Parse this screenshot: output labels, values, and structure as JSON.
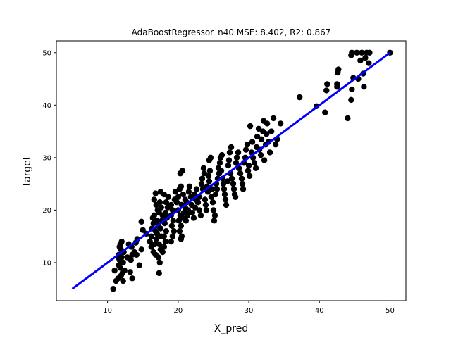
{
  "chart_data": {
    "type": "scatter",
    "title": "AdaBoostRegressor_n40 MSE: 8.402, R2: 0.867",
    "xlabel": "X_pred",
    "ylabel": "target",
    "xlim": [
      2.75,
      52.25
    ],
    "ylim": [
      2.75,
      52.25
    ],
    "xticks": [
      10,
      20,
      30,
      40,
      50
    ],
    "yticks": [
      10,
      20,
      30,
      40,
      50
    ],
    "grid": false,
    "series": [
      {
        "kind": "scatter",
        "color": "#000000",
        "points": [
          [
            10.8,
            5.0
          ],
          [
            11.2,
            6.5
          ],
          [
            11.0,
            8.5
          ],
          [
            11.5,
            7.0
          ],
          [
            11.8,
            9.0
          ],
          [
            11.7,
            10.5
          ],
          [
            11.6,
            11.5
          ],
          [
            11.9,
            12.5
          ],
          [
            11.8,
            13.5
          ],
          [
            12.0,
            14.0
          ],
          [
            11.9,
            7.5
          ],
          [
            12.1,
            8.0
          ],
          [
            12.2,
            10.0
          ],
          [
            12.0,
            11.0
          ],
          [
            12.3,
            12.0
          ],
          [
            11.7,
            13.0
          ],
          [
            11.6,
            9.5
          ],
          [
            12.4,
            8.5
          ],
          [
            12.2,
            6.5
          ],
          [
            11.5,
            11.0
          ],
          [
            12.8,
            11.0
          ],
          [
            13.2,
            8.2
          ],
          [
            13.3,
            10.5
          ],
          [
            13.5,
            11.5
          ],
          [
            13.4,
            13.0
          ],
          [
            13.8,
            12.0
          ],
          [
            13.5,
            7.0
          ],
          [
            14.0,
            13.8
          ],
          [
            14.1,
            11.5
          ],
          [
            14.5,
            9.5
          ],
          [
            14.2,
            14.5
          ],
          [
            13.0,
            13.5
          ],
          [
            14.8,
            12.5
          ],
          [
            15.0,
            16.2
          ],
          [
            14.8,
            17.8
          ],
          [
            15.5,
            15.5
          ],
          [
            16.0,
            14.0
          ],
          [
            16.2,
            15.0
          ],
          [
            16.3,
            16.5
          ],
          [
            16.5,
            17.5
          ],
          [
            16.4,
            18.5
          ],
          [
            16.6,
            19.0
          ],
          [
            16.2,
            13.0
          ],
          [
            16.5,
            12.0
          ],
          [
            16.8,
            11.5
          ],
          [
            16.7,
            13.5
          ],
          [
            16.9,
            14.5
          ],
          [
            17.0,
            15.5
          ],
          [
            16.8,
            16.0
          ],
          [
            17.2,
            17.0
          ],
          [
            17.0,
            18.0
          ],
          [
            17.3,
            19.5
          ],
          [
            17.1,
            20.0
          ],
          [
            16.9,
            21.0
          ],
          [
            16.6,
            22.0
          ],
          [
            16.8,
            23.2
          ],
          [
            17.5,
            23.5
          ],
          [
            17.4,
            21.5
          ],
          [
            17.6,
            20.5
          ],
          [
            17.8,
            19.0
          ],
          [
            17.7,
            18.0
          ],
          [
            17.5,
            16.5
          ],
          [
            17.6,
            15.0
          ],
          [
            17.3,
            13.5
          ],
          [
            17.5,
            12.5
          ],
          [
            17.2,
            11.0
          ],
          [
            17.4,
            10.0
          ],
          [
            17.3,
            8.0
          ],
          [
            17.8,
            12.0
          ],
          [
            18.0,
            13.0
          ],
          [
            18.2,
            14.0
          ],
          [
            18.0,
            15.0
          ],
          [
            18.3,
            16.0
          ],
          [
            18.1,
            17.5
          ],
          [
            18.4,
            18.5
          ],
          [
            18.2,
            19.5
          ],
          [
            18.5,
            20.5
          ],
          [
            18.3,
            21.5
          ],
          [
            18.6,
            22.5
          ],
          [
            18.0,
            23.0
          ],
          [
            19.0,
            21.0
          ],
          [
            19.2,
            20.0
          ],
          [
            19.0,
            19.0
          ],
          [
            19.3,
            18.0
          ],
          [
            19.1,
            17.0
          ],
          [
            19.4,
            16.0
          ],
          [
            19.2,
            15.0
          ],
          [
            19.0,
            14.0
          ],
          [
            19.5,
            22.0
          ],
          [
            19.6,
            23.5
          ],
          [
            19.8,
            21.5
          ],
          [
            20.0,
            22.5
          ],
          [
            20.2,
            24.0
          ],
          [
            20.0,
            20.0
          ],
          [
            20.3,
            19.0
          ],
          [
            20.1,
            18.0
          ],
          [
            20.4,
            17.0
          ],
          [
            20.2,
            16.0
          ],
          [
            20.5,
            15.0
          ],
          [
            20.4,
            14.5
          ],
          [
            20.6,
            18.5
          ],
          [
            20.8,
            19.5
          ],
          [
            20.5,
            21.0
          ],
          [
            20.7,
            23.0
          ],
          [
            20.4,
            24.5
          ],
          [
            20.3,
            27.0
          ],
          [
            20.6,
            27.5
          ],
          [
            21.0,
            20.5
          ],
          [
            21.2,
            21.5
          ],
          [
            21.0,
            22.0
          ],
          [
            21.3,
            19.0
          ],
          [
            21.1,
            18.0
          ],
          [
            21.4,
            20.0
          ],
          [
            21.5,
            23.5
          ],
          [
            21.6,
            24.5
          ],
          [
            21.8,
            22.5
          ],
          [
            21.9,
            21.0
          ],
          [
            22.0,
            19.5
          ],
          [
            22.2,
            18.5
          ],
          [
            22.4,
            20.5
          ],
          [
            22.5,
            22.0
          ],
          [
            22.3,
            23.0
          ],
          [
            22.6,
            24.0
          ],
          [
            22.8,
            21.5
          ],
          [
            23.0,
            20.0
          ],
          [
            23.2,
            19.0
          ],
          [
            23.0,
            22.5
          ],
          [
            23.3,
            25.0
          ],
          [
            23.5,
            24.0
          ],
          [
            23.4,
            26.0
          ],
          [
            23.7,
            27.0
          ],
          [
            23.6,
            28.0
          ],
          [
            23.8,
            22.0
          ],
          [
            23.9,
            21.0
          ],
          [
            24.0,
            20.0
          ],
          [
            24.2,
            23.5
          ],
          [
            24.1,
            24.5
          ],
          [
            24.4,
            25.5
          ],
          [
            24.3,
            26.5
          ],
          [
            24.5,
            27.5
          ],
          [
            24.4,
            29.5
          ],
          [
            24.6,
            30.0
          ],
          [
            24.8,
            24.0
          ],
          [
            24.7,
            22.5
          ],
          [
            24.9,
            21.5
          ],
          [
            25.0,
            20.0
          ],
          [
            25.2,
            19.0
          ],
          [
            25.1,
            18.0
          ],
          [
            25.3,
            23.0
          ],
          [
            25.5,
            24.0
          ],
          [
            25.4,
            25.0
          ],
          [
            25.6,
            26.0
          ],
          [
            25.8,
            27.0
          ],
          [
            25.7,
            28.0
          ],
          [
            25.9,
            29.0
          ],
          [
            26.0,
            30.0
          ],
          [
            26.2,
            30.5
          ],
          [
            26.1,
            27.5
          ],
          [
            26.3,
            26.0
          ],
          [
            26.4,
            25.0
          ],
          [
            26.5,
            24.0
          ],
          [
            26.6,
            23.0
          ],
          [
            26.7,
            22.0
          ],
          [
            26.8,
            21.0
          ],
          [
            27.0,
            25.5
          ],
          [
            27.1,
            28.5
          ],
          [
            27.2,
            29.5
          ],
          [
            27.3,
            31.0
          ],
          [
            27.5,
            32.0
          ],
          [
            27.4,
            27.0
          ],
          [
            27.6,
            26.0
          ],
          [
            27.8,
            25.0
          ],
          [
            27.9,
            24.0
          ],
          [
            28.0,
            23.0
          ],
          [
            28.1,
            22.5
          ],
          [
            28.2,
            29.0
          ],
          [
            28.3,
            30.0
          ],
          [
            28.5,
            31.0
          ],
          [
            28.6,
            28.0
          ],
          [
            28.8,
            27.0
          ],
          [
            29.0,
            26.0
          ],
          [
            29.1,
            25.0
          ],
          [
            29.2,
            24.0
          ],
          [
            29.3,
            29.0
          ],
          [
            29.5,
            30.0
          ],
          [
            29.6,
            31.5
          ],
          [
            29.8,
            32.5
          ],
          [
            29.9,
            27.5
          ],
          [
            30.0,
            28.5
          ],
          [
            30.1,
            26.5
          ],
          [
            30.2,
            36.0
          ],
          [
            30.4,
            31.0
          ],
          [
            30.5,
            33.0
          ],
          [
            30.6,
            30.0
          ],
          [
            30.8,
            29.0
          ],
          [
            31.0,
            28.0
          ],
          [
            31.1,
            32.0
          ],
          [
            31.2,
            34.0
          ],
          [
            31.4,
            35.5
          ],
          [
            31.5,
            31.5
          ],
          [
            31.7,
            30.5
          ],
          [
            31.8,
            33.5
          ],
          [
            32.0,
            35.0
          ],
          [
            32.1,
            37.0
          ],
          [
            32.2,
            29.5
          ],
          [
            32.4,
            32.5
          ],
          [
            32.5,
            34.5
          ],
          [
            32.6,
            36.5
          ],
          [
            32.8,
            33.0
          ],
          [
            33.0,
            31.0
          ],
          [
            33.2,
            35.0
          ],
          [
            33.5,
            37.5
          ],
          [
            33.8,
            32.5
          ],
          [
            34.0,
            33.5
          ],
          [
            34.5,
            36.5
          ],
          [
            37.2,
            41.5
          ],
          [
            39.6,
            39.8
          ],
          [
            40.8,
            38.6
          ],
          [
            41.0,
            42.8
          ],
          [
            41.1,
            44.0
          ],
          [
            42.5,
            43.5
          ],
          [
            42.5,
            44.0
          ],
          [
            42.6,
            46.2
          ],
          [
            42.7,
            46.8
          ],
          [
            44.0,
            37.5
          ],
          [
            44.5,
            41.0
          ],
          [
            44.6,
            43.0
          ],
          [
            44.8,
            45.2
          ],
          [
            44.5,
            49.5
          ],
          [
            44.6,
            50.0
          ],
          [
            45.3,
            50.0
          ],
          [
            45.5,
            45.0
          ],
          [
            45.8,
            48.5
          ],
          [
            46.0,
            50.0
          ],
          [
            46.3,
            43.5
          ],
          [
            46.2,
            46.0
          ],
          [
            46.5,
            49.0
          ],
          [
            46.7,
            50.0
          ],
          [
            47.0,
            48.0
          ],
          [
            47.1,
            50.0
          ],
          [
            50.0,
            50.0
          ]
        ]
      },
      {
        "kind": "line",
        "color": "#0000ff",
        "x": [
          5,
          50
        ],
        "y": [
          5,
          50
        ]
      }
    ]
  }
}
